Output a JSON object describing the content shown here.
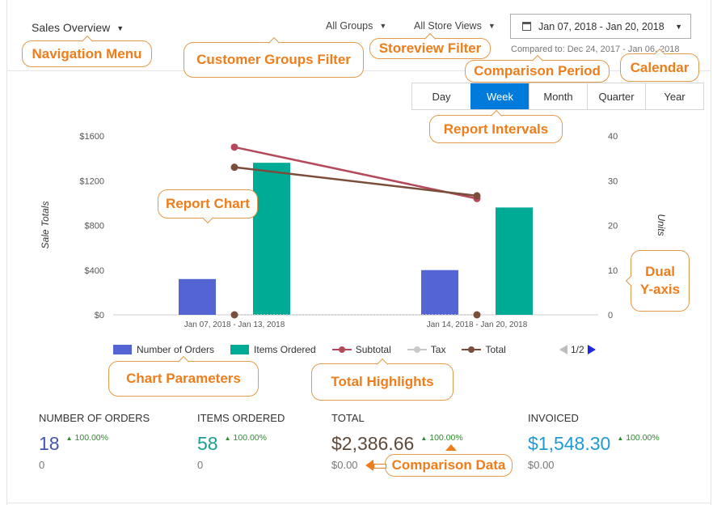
{
  "header": {
    "nav_menu_label": "Sales Overview",
    "customer_groups_label": "All Groups",
    "store_views_label": "All Store Views",
    "date_range_label": "Jan 07, 2018 - Jan 20, 2018",
    "compared_to_label": "Compared to: Dec 24, 2017 - Jan 06, 2018"
  },
  "intervals": {
    "items": [
      "Day",
      "Week",
      "Month",
      "Quarter",
      "Year"
    ],
    "active": "Week"
  },
  "chart_data": {
    "type": "bar",
    "categories": [
      "Jan 07, 2018 - Jan 13, 2018",
      "Jan 14, 2018 - Jan 20, 2018"
    ],
    "ylabel_left": "Sale Totals",
    "ylabel_right": "Units",
    "y_left_ticks": [
      "$0",
      "$400",
      "$800",
      "$1200",
      "$1600"
    ],
    "y_right_ticks": [
      "0",
      "10",
      "20",
      "30",
      "40"
    ],
    "y_left_range": [
      0,
      1600
    ],
    "y_right_range": [
      0,
      40
    ],
    "grid": false,
    "legend_position": "bottom",
    "series": [
      {
        "name": "Number of Orders",
        "kind": "bar",
        "axis": "right",
        "color": "#5465d3",
        "values": [
          8,
          10
        ]
      },
      {
        "name": "Items Ordered",
        "kind": "bar",
        "axis": "right",
        "color": "#00ab96",
        "values": [
          34,
          24
        ]
      },
      {
        "name": "Subtotal",
        "kind": "line",
        "axis": "left",
        "color": "#b5495b",
        "values": [
          1500,
          1040
        ]
      },
      {
        "name": "Tax",
        "kind": "line",
        "axis": "left",
        "color": "#c8c8c8",
        "values": [
          0,
          0
        ]
      },
      {
        "name": "Total",
        "kind": "line",
        "axis": "left",
        "color": "#7a4e3b",
        "values": [
          1320,
          1065
        ]
      }
    ]
  },
  "legend": {
    "items": [
      {
        "label": "Number of Orders",
        "color": "#5465d3",
        "style": "box"
      },
      {
        "label": "Items Ordered",
        "color": "#00ab96",
        "style": "box"
      },
      {
        "label": "Subtotal",
        "color": "#b5495b",
        "style": "line"
      },
      {
        "label": "Tax",
        "color": "#c8c8c8",
        "style": "line"
      },
      {
        "label": "Total",
        "color": "#7a4e3b",
        "style": "line"
      }
    ],
    "page_label": "1/2"
  },
  "totals": [
    {
      "label": "Number of Orders",
      "value": "18",
      "change": "100.00%",
      "previous": "0",
      "color": "#4455aa"
    },
    {
      "label": "Items Ordered",
      "value": "58",
      "change": "100.00%",
      "previous": "0",
      "color": "#1a9e8f"
    },
    {
      "label": "Total",
      "value": "$2,386.66",
      "change": "100.00%",
      "previous": "$0.00",
      "color": "#5e4a3a"
    },
    {
      "label": "Invoiced",
      "value": "$1,548.30",
      "change": "100.00%",
      "previous": "$0.00",
      "color": "#1f9ad6"
    }
  ],
  "callouts": {
    "navigation_menu": "Navigation Menu",
    "customer_groups_filter": "Customer Groups Filter",
    "storeview_filter": "Storeview Filter",
    "comparison_period": "Comparison Period",
    "calendar": "Calendar",
    "report_intervals": "Report Intervals",
    "report_chart": "Report Chart",
    "dual_y_axis_line1": "Dual",
    "dual_y_axis_line2": "Y-axis",
    "chart_parameters": "Chart Parameters",
    "total_highlights": "Total Highlights",
    "comparison_data": "Comparison Data"
  }
}
